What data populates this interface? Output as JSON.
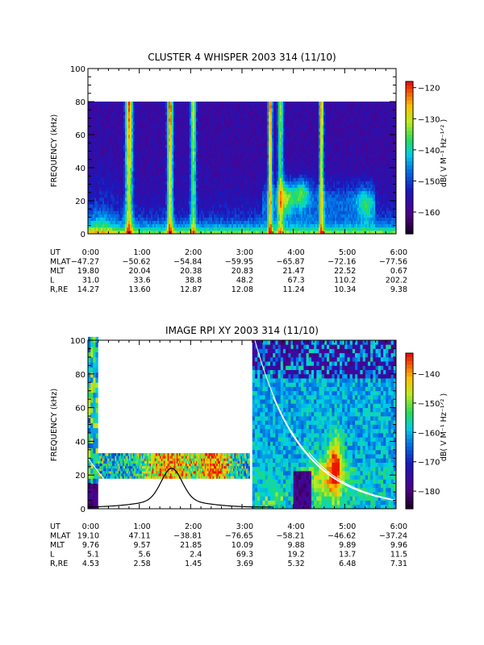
{
  "chart_data": [
    {
      "type": "heatmap",
      "title": "CLUSTER 4 WHISPER 2003 314 (11/10)",
      "ylabel": "FREQUENCY (kHz)",
      "ylim": [
        0,
        100
      ],
      "yticks": [
        "0",
        "20",
        "40",
        "60",
        "80",
        "100"
      ],
      "colorbar": {
        "label": "dB( V M⁻¹ Hz⁻¹ᐟ² )",
        "range": [
          -167,
          -118
        ],
        "ticks": [
          -120,
          -130,
          -140,
          -150,
          -160
        ]
      },
      "data_fmax": 80,
      "bursts": [
        {
          "time": 0.8,
          "width": 0.05,
          "strength": 0.95
        },
        {
          "time": 1.6,
          "width": 0.04,
          "strength": 1.0
        },
        {
          "time": 2.05,
          "width": 0.04,
          "strength": 0.75
        },
        {
          "time": 3.55,
          "width": 0.03,
          "strength": 1.0
        },
        {
          "time": 3.75,
          "width": 0.04,
          "strength": 0.65
        },
        {
          "time": 4.55,
          "width": 0.03,
          "strength": 0.9
        }
      ],
      "ephemeris": {
        "labels": [
          "UT",
          "MLAT",
          "MLT",
          "L",
          "R,RE"
        ],
        "columns": [
          [
            "0:00",
            "-47.27",
            "19.80",
            "31.0",
            "14.27"
          ],
          [
            "1:00",
            "-50.62",
            "20.04",
            "33.6",
            "13.60"
          ],
          [
            "2:00",
            "-54.84",
            "20.38",
            "38.8",
            "12.87"
          ],
          [
            "3:00",
            "-59.95",
            "20.83",
            "48.2",
            "12.08"
          ],
          [
            "4:00",
            "-65.87",
            "21.47",
            "67.3",
            "11.24"
          ],
          [
            "5:00",
            "-72.16",
            "22.52",
            "110.2",
            "10.34"
          ],
          [
            "6:00",
            "-77.56",
            "0.67",
            "202.2",
            "9.38"
          ]
        ]
      }
    },
    {
      "type": "heatmap",
      "title": "IMAGE RPI XY 2003 314 (11/10)",
      "ylabel": "FREQUENCY (kHz)",
      "ylim": [
        0,
        100
      ],
      "yticks": [
        "0",
        "20",
        "40",
        "60",
        "80",
        "100"
      ],
      "colorbar": {
        "label": "dB( V M⁻¹ Hz⁻¹ᐟ² )",
        "range": [
          -186,
          -133
        ],
        "ticks": [
          -140,
          -150,
          -160,
          -170,
          -180
        ]
      },
      "ephemeris": {
        "labels": [
          "UT",
          "MLAT",
          "MLT",
          "L",
          "R,RE"
        ],
        "columns": [
          [
            "0:00",
            "19.10",
            "9.76",
            "5.1",
            "4.53"
          ],
          [
            "1:00",
            "47.11",
            "9.57",
            "5.6",
            "2.58"
          ],
          [
            "2:00",
            "-38.81",
            "21.85",
            "2.4",
            "1.45"
          ],
          [
            "3:00",
            "-76.65",
            "10.09",
            "69.3",
            "3.69"
          ],
          [
            "4:00",
            "-58.21",
            "9.88",
            "19.2",
            "5.32"
          ],
          [
            "5:00",
            "-46.62",
            "9.89",
            "13.7",
            "6.48"
          ],
          [
            "6:00",
            "-37.24",
            "9.96",
            "11.5",
            "7.31"
          ]
        ]
      }
    }
  ]
}
